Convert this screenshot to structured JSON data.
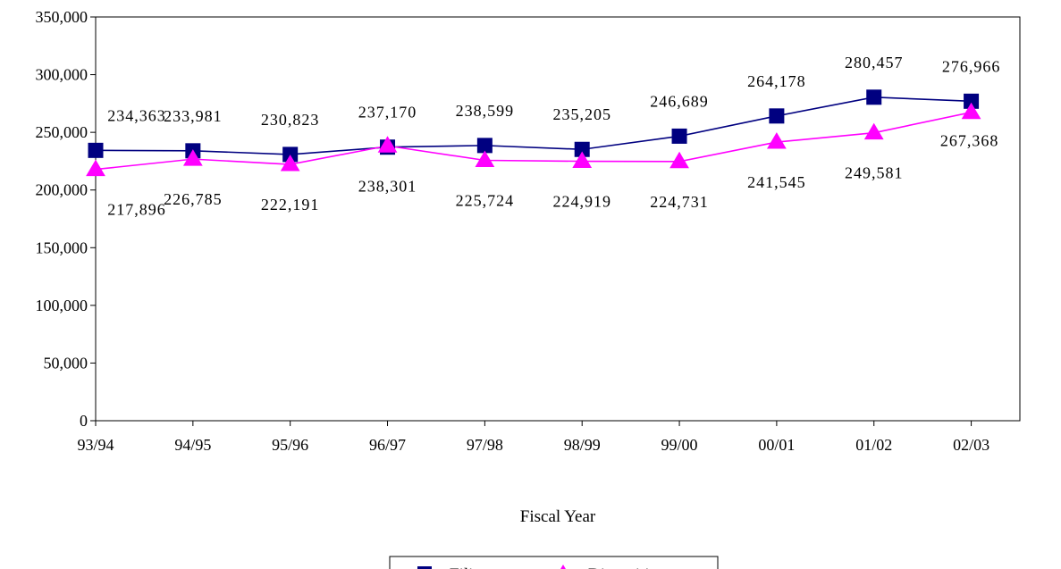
{
  "chart_data": {
    "type": "line",
    "categories": [
      "93/94",
      "94/95",
      "95/96",
      "96/97",
      "97/98",
      "98/99",
      "99/00",
      "00/01",
      "01/02",
      "02/03"
    ],
    "series": [
      {
        "name": "Filings",
        "color": "#000080",
        "marker": "square",
        "values": [
          234363,
          233981,
          230823,
          237170,
          238599,
          235205,
          246689,
          264178,
          280457,
          276966
        ],
        "labels": [
          "234,363",
          "233,981",
          "230,823",
          "237,170",
          "238,599",
          "235,205",
          "246,689",
          "264,178",
          "280,457",
          "276,966"
        ]
      },
      {
        "name": "Dispositions",
        "color": "#FF00FF",
        "marker": "triangle",
        "values": [
          217896,
          226785,
          222191,
          238301,
          225724,
          224919,
          224731,
          241545,
          249581,
          267368
        ],
        "labels": [
          "217,896",
          "226,785",
          "222,191",
          "238,301",
          "225,724",
          "224,919",
          "224,731",
          "241,545",
          "249,581",
          "267,368"
        ]
      }
    ],
    "xlabel": "Fiscal Year",
    "ylabel": "",
    "ylim": [
      0,
      350000
    ],
    "yticks": [
      0,
      50000,
      100000,
      150000,
      200000,
      250000,
      300000,
      350000
    ],
    "ytick_labels": [
      "0",
      "50,000",
      "100,000",
      "150,000",
      "200,000",
      "250,000",
      "300,000",
      "350,000"
    ],
    "grid": false,
    "legend": "bottom-center"
  }
}
